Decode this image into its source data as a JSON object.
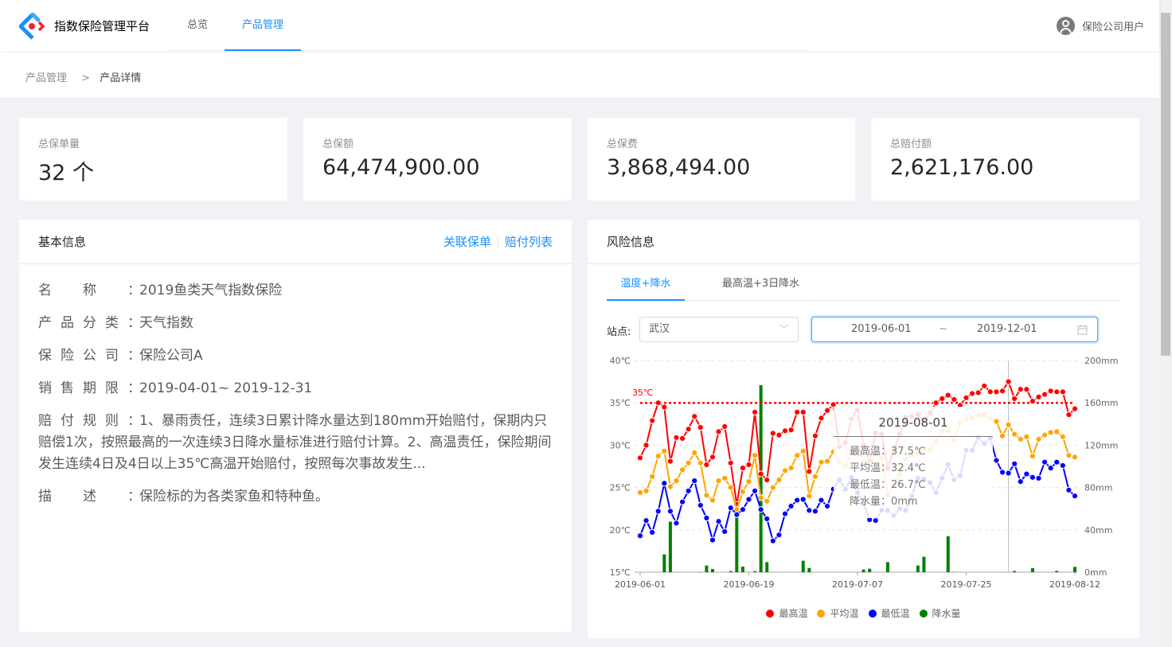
{
  "header": {
    "app_title": "指数保险管理平台",
    "nav": [
      {
        "label": "总览"
      },
      {
        "label": "产品管理"
      }
    ],
    "user": "保险公司用户",
    "accent": "#1890ff"
  },
  "breadcrumb": [
    "产品管理",
    ">",
    "产品详情"
  ],
  "stats": [
    {
      "label": "总保单量",
      "value": "32 个"
    },
    {
      "label": "总保额",
      "value": "64,474,900.00"
    },
    {
      "label": "总保费",
      "value": "3,868,494.00"
    },
    {
      "label": "总赔付额",
      "value": "2,621,176.00"
    }
  ],
  "basic": {
    "title": "基本信息",
    "links": [
      "关联保单",
      "赔付列表"
    ],
    "rows": [
      {
        "k": [
          "名",
          "称"
        ],
        "v": "2019鱼类天气指数保险"
      },
      {
        "k": [
          "产",
          "品",
          "分",
          "类"
        ],
        "v": "天气指数"
      },
      {
        "k": [
          "保",
          "险",
          "公",
          "司"
        ],
        "v": "保险公司A"
      },
      {
        "k": [
          "销",
          "售",
          "期",
          "限"
        ],
        "v": "2019-04-01~ 2019-12-31"
      },
      {
        "k": [
          "赔",
          "付",
          "规",
          "则"
        ],
        "v": "1、暴雨责任，连续3日累计降水量达到180mm开始赔付，保期内只赔偿1次，按照最高的一次连续3日降水量标准进行赔付计算。2、高温责任，保险期间发生连续4日及4日以上35℃高温开始赔付，按照每次事故发生..."
      },
      {
        "k": [
          "描",
          "述"
        ],
        "v": "保险标的为各类家鱼和特种鱼。"
      }
    ]
  },
  "risk": {
    "title": "风险信息",
    "tabs": [
      "温度+降水",
      "最高温+3日降水"
    ],
    "station_label": "站点:",
    "station": "武汉",
    "date_start": "2019-06-01",
    "date_sep": "~",
    "date_end": "2019-12-01"
  },
  "chart_data": {
    "type": "line",
    "x": [
      "2019-06-01",
      "2019-06-02",
      "2019-06-03",
      "2019-06-04",
      "2019-06-05",
      "2019-06-06",
      "2019-06-07",
      "2019-06-08",
      "2019-06-09",
      "2019-06-10",
      "2019-06-11",
      "2019-06-12",
      "2019-06-13",
      "2019-06-14",
      "2019-06-15",
      "2019-06-16",
      "2019-06-17",
      "2019-06-18",
      "2019-06-19",
      "2019-06-20",
      "2019-06-21",
      "2019-06-22",
      "2019-06-23",
      "2019-06-24",
      "2019-06-25",
      "2019-06-26",
      "2019-06-27",
      "2019-06-28",
      "2019-06-29",
      "2019-06-30",
      "2019-07-01",
      "2019-07-02",
      "2019-07-03",
      "2019-07-04",
      "2019-07-05",
      "2019-07-06",
      "2019-07-07",
      "2019-07-08",
      "2019-07-09",
      "2019-07-10",
      "2019-07-11",
      "2019-07-12",
      "2019-07-13",
      "2019-07-14",
      "2019-07-15",
      "2019-07-16",
      "2019-07-17",
      "2019-07-18",
      "2019-07-19",
      "2019-07-20",
      "2019-07-21",
      "2019-07-22",
      "2019-07-23",
      "2019-07-24",
      "2019-07-25",
      "2019-07-26",
      "2019-07-27",
      "2019-07-28",
      "2019-07-29",
      "2019-07-30",
      "2019-07-31",
      "2019-08-01",
      "2019-08-02",
      "2019-08-03",
      "2019-08-04",
      "2019-08-05",
      "2019-08-06",
      "2019-08-07",
      "2019-08-08",
      "2019-08-09",
      "2019-08-10",
      "2019-08-11",
      "2019-08-12"
    ],
    "x_tick_labels": [
      "2019-06-01",
      "2019-06-19",
      "2019-07-07",
      "2019-07-25",
      "2019-08-12"
    ],
    "y_left": {
      "ticks": [
        "15℃",
        "20℃",
        "25℃",
        "30℃",
        "35℃",
        "40℃"
      ],
      "ylim": [
        15,
        40
      ]
    },
    "y_right": {
      "ticks": [
        "0mm",
        "40mm",
        "80mm",
        "120mm",
        "160mm",
        "200mm"
      ],
      "ylim": [
        0,
        200
      ]
    },
    "mark_line": {
      "value": 35,
      "label": "35℃",
      "color": "#ff0000"
    },
    "grid": true,
    "legend_position": "bottom",
    "series": [
      {
        "name": "最高温",
        "type": "line",
        "color": "#ff0000",
        "values": [
          28.5,
          30.0,
          32.9,
          35.0,
          34.5,
          28.1,
          30.9,
          30.8,
          31.9,
          33.4,
          32.1,
          27.7,
          28.6,
          31.6,
          32.2,
          27.9,
          23.0,
          27.3,
          27.7,
          33.9,
          26.6,
          25.9,
          31.4,
          31.2,
          31.7,
          31.8,
          33.9,
          33.9,
          26.9,
          31.1,
          33.2,
          34.1,
          34.8,
          29.8,
          30.3,
          33.1,
          34.1,
          30.0,
          28.1,
          31.4,
          31.3,
          27.3,
          29.4,
          31.3,
          33.3,
          33.4,
          33.6,
          32.8,
          33.8,
          35.0,
          35.5,
          35.9,
          35.4,
          34.7,
          35.6,
          36.1,
          36.2,
          37.0,
          36.3,
          36.3,
          36.4,
          37.5,
          35.5,
          36.6,
          36.6,
          35.2,
          35.7,
          36.0,
          36.4,
          36.3,
          36.3,
          33.6,
          34.3
        ]
      },
      {
        "name": "平均温",
        "type": "line",
        "color": "#ffa500",
        "values": [
          24.4,
          24.6,
          26.3,
          28.7,
          29.3,
          25.1,
          25.8,
          27.1,
          27.9,
          29.1,
          27.9,
          24.1,
          23.5,
          25.8,
          26.1,
          25.0,
          22.4,
          24.5,
          25.7,
          28.8,
          23.8,
          23.4,
          25.0,
          25.9,
          27.0,
          27.3,
          28.8,
          29.3,
          24.0,
          26.3,
          28.0,
          28.1,
          29.2,
          27.9,
          27.6,
          29.0,
          29.8,
          28.1,
          27.6,
          28.9,
          28.4,
          24.1,
          25.3,
          26.6,
          28.3,
          28.8,
          29.0,
          29.5,
          29.5,
          30.5,
          31.7,
          31.7,
          30.6,
          32.6,
          33.1,
          33.2,
          33.6,
          33.6,
          33.2,
          32.8,
          31.1,
          32.4,
          31.3,
          30.7,
          31.0,
          28.7,
          30.7,
          31.2,
          31.5,
          31.6,
          31.0,
          28.8,
          28.6
        ]
      },
      {
        "name": "最低温",
        "type": "line",
        "color": "#0000ff",
        "values": [
          19.3,
          21.1,
          19.7,
          22.2,
          25.5,
          22.2,
          20.8,
          23.3,
          24.6,
          25.8,
          22.9,
          21.4,
          18.8,
          21.0,
          19.8,
          22.6,
          21.8,
          22.4,
          23.6,
          24.6,
          22.4,
          21.3,
          18.7,
          19.4,
          21.9,
          22.8,
          23.5,
          23.6,
          22.3,
          22.2,
          23.5,
          22.8,
          24.8,
          25.9,
          24.8,
          26.2,
          24.4,
          23.1,
          21.2,
          21.1,
          22.3,
          22.3,
          21.7,
          22.5,
          22.3,
          24.0,
          26.1,
          26.0,
          25.6,
          24.4,
          26.1,
          27.7,
          25.9,
          26.4,
          29.4,
          29.4,
          30.9,
          30.2,
          30.8,
          28.2,
          26.8,
          26.7,
          27.8,
          25.7,
          26.6,
          26.2,
          26.1,
          28.0,
          27.3,
          28.0,
          27.6,
          24.7,
          24.0
        ]
      },
      {
        "name": "降水量",
        "type": "bar",
        "axis": "right",
        "color": "#008000",
        "values": [
          0,
          0,
          0,
          0,
          16.8,
          47.7,
          0,
          0,
          0,
          0,
          0.3,
          6.3,
          3.0,
          0,
          0,
          1.0,
          54.7,
          5.3,
          0,
          1.0,
          176.7,
          9.5,
          0,
          0,
          0,
          0,
          0,
          10.8,
          4.0,
          0,
          0,
          0,
          0,
          0,
          0,
          0,
          0,
          2.5,
          3.3,
          0,
          0,
          9.5,
          0,
          0,
          0,
          0,
          6.3,
          14.6,
          0,
          0,
          0,
          34.0,
          0.3,
          0,
          0,
          0,
          0,
          0,
          0,
          0,
          0,
          0,
          1.2,
          0,
          0,
          3.8,
          0,
          0,
          0,
          1.2,
          0,
          0,
          5.0
        ]
      }
    ],
    "tooltip": {
      "title": "2019-08-01",
      "lines": [
        "最高温：37.5℃",
        "平均温：32.4℃",
        "最低温：26.7℃",
        "降水量：0mm"
      ]
    }
  }
}
